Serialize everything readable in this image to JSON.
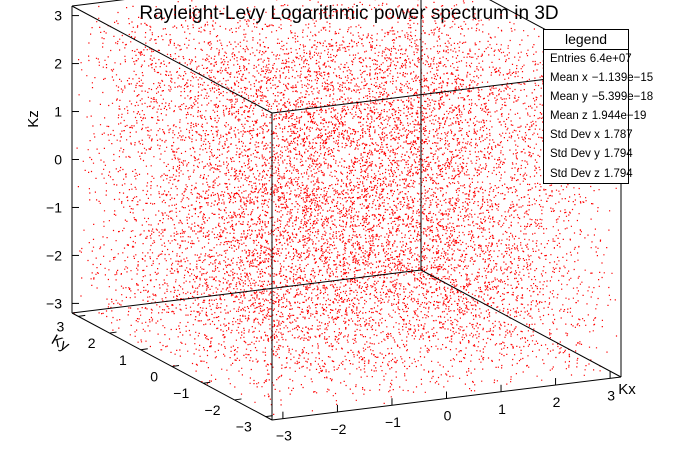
{
  "chart_data": {
    "type": "scatter",
    "title": "Rayleight-Levy Logarithmic power spectrum in 3D",
    "xlabel": "Kx",
    "ylabel": "Ky",
    "zlabel": "Kz",
    "xlim": [
      -3.2,
      3.2
    ],
    "ylim": [
      -3.2,
      3.2
    ],
    "zlim": [
      -3.2,
      3.2
    ],
    "x_ticks": [
      "−3",
      "−2",
      "−1",
      "0",
      "1",
      "2",
      "3"
    ],
    "y_ticks": [
      "−3",
      "−2",
      "−1",
      "0",
      "1",
      "2",
      "3"
    ],
    "z_ticks": [
      "−3",
      "−2",
      "−1",
      "0",
      "1",
      "2",
      "3"
    ],
    "marker_color": "#ff0000",
    "point_distribution": "approximately uniform in [-3.2, 3.2]^3 (sampled cloud)",
    "entries": "6.4e+07"
  },
  "stats": {
    "header": "legend",
    "rows": [
      {
        "label": "Entries",
        "value": "6.4e+07"
      },
      {
        "label": "Mean x",
        "value": "−1.139e−15"
      },
      {
        "label": "Mean y",
        "value": "−5.399e−18"
      },
      {
        "label": "Mean z",
        "value": "1.944e−19"
      },
      {
        "label": "Std Dev x",
        "value": "1.787"
      },
      {
        "label": "Std Dev y",
        "value": "1.794"
      },
      {
        "label": "Std Dev z",
        "value": "1.794"
      }
    ]
  }
}
